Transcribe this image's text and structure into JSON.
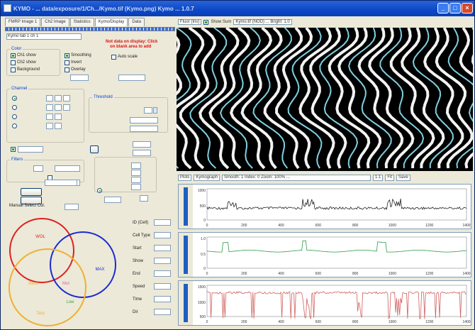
{
  "window": {
    "title": "KYMO - ...  data/exposure/1/Ch.../Kymo.tif  (Kymo.png)   Kymo  ...  1.0.7",
    "controls": {
      "minimize": "_",
      "maximize": "□",
      "close": "×"
    }
  },
  "left": {
    "tabs": [
      "FMRP Image 1",
      "Ch2 Image",
      "Statistics",
      "Kymo/Display",
      "Data"
    ],
    "path_value": "Kymo tab 1 ch 1",
    "warning_text": [
      "Not data on display: Click",
      "on blank area to add"
    ],
    "groups": {
      "color": "Color",
      "channels": "Channel",
      "threshold": "Threshold",
      "filters": "Filters"
    },
    "checkboxes": [
      {
        "label": "Ch1 show",
        "on": true
      },
      {
        "label": "Ch2 show",
        "on": false
      },
      {
        "label": "Background",
        "on": false
      },
      {
        "label": "Smoothing",
        "on": true
      },
      {
        "label": "Invert",
        "on": false
      },
      {
        "label": "Overlay",
        "on": false
      },
      {
        "label": "Auto scale",
        "on": false
      }
    ],
    "venn_title": "Manual Select  Col.",
    "venn_labels": [
      "WOL",
      "MAX",
      "Base",
      "Mut",
      "Low",
      "Tarp"
    ],
    "venn_colors": {
      "red": "#e02020",
      "blue": "#1a2bd0",
      "orange": "#f0b030",
      "green": "#3da43d",
      "pink": "#e060b0"
    },
    "right_col_labels": [
      "ID (Cell)",
      "Cell Type",
      "Start",
      "Show",
      "End",
      "Speed",
      "Time",
      "Dir"
    ]
  },
  "right": {
    "toolbar": [
      "Fluor (Inv)",
      "Show Sum",
      "Kymo.tif  (NOD)  ...  Bright: 1.0"
    ],
    "plot_toolbar": [
      "Plots",
      "Kymograph",
      "Smooth: 1  Index: 0  Zoom: 100%  ...",
      "1.1",
      "Fit",
      "Save"
    ],
    "plots": [
      {
        "name": "top-plot",
        "color": "#222222",
        "ylabels": [
          "1000",
          "500",
          "0"
        ]
      },
      {
        "name": "mid-plot",
        "color": "#2e9a4a",
        "ylabels": [
          "1.0",
          "0.5",
          "0"
        ]
      },
      {
        "name": "bottom-plot",
        "color": "#d06060",
        "ylabels": [
          "1500",
          "1000",
          "500"
        ]
      }
    ],
    "x_ticks": [
      "0",
      "200",
      "400",
      "600",
      "800",
      "1000",
      "1200",
      "1400"
    ]
  }
}
